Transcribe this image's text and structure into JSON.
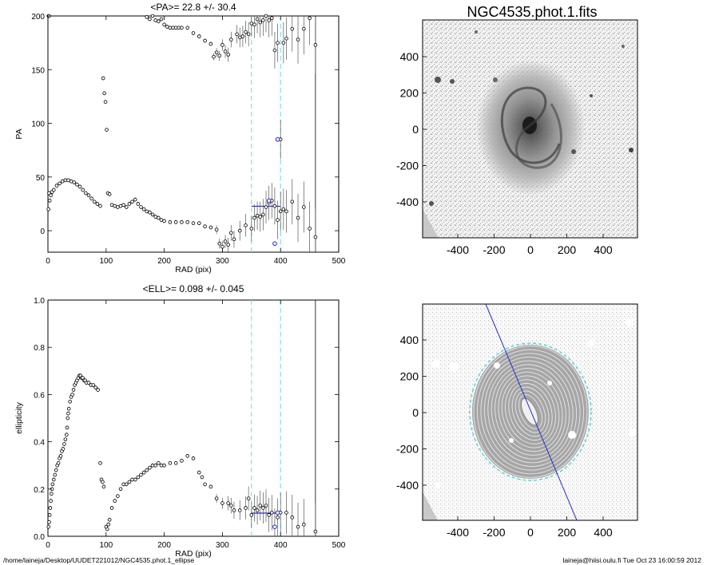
{
  "footer": {
    "path": "/home/laineja/Desktop/UUDET221012/NGC4535.phot.1_ellipse",
    "user_time": "laineja@hiisi.oulu.fi  Tue Oct 23 16:00:59 2012"
  },
  "images": {
    "title": "NGC4535.phot.1.fits",
    "ticks": [
      "-400",
      "-200",
      "0",
      "200",
      "400"
    ]
  },
  "chart_data": [
    {
      "type": "scatter",
      "title": "<PA>=  22.8 +/-  30.4",
      "xlabel": "RAD (pix)",
      "ylabel": "PA",
      "xlim": [
        0,
        500
      ],
      "ylim": [
        -20,
        200
      ],
      "xticks": [
        0,
        100,
        200,
        300,
        400,
        500
      ],
      "yticks": [
        0,
        50,
        100,
        150,
        200
      ],
      "markers": {
        "cyan_dashed_x": [
          350,
          400
        ],
        "solid_x": [
          460
        ],
        "mean_segment": {
          "x": [
            350,
            400
          ],
          "y": 22.8
        }
      },
      "series": [
        {
          "points": [
            [
              1,
              20
            ],
            [
              2,
              35
            ],
            [
              3,
              28
            ],
            [
              5,
              33
            ],
            [
              7,
              36
            ],
            [
              10,
              38
            ],
            [
              15,
              42
            ],
            [
              20,
              44
            ],
            [
              25,
              46
            ],
            [
              30,
              47
            ],
            [
              35,
              47
            ],
            [
              40,
              46
            ],
            [
              45,
              45
            ],
            [
              50,
              43
            ],
            [
              55,
              41
            ],
            [
              60,
              38
            ],
            [
              65,
              35
            ],
            [
              70,
              33
            ],
            [
              75,
              30
            ],
            [
              80,
              27
            ],
            [
              85,
              25
            ],
            [
              90,
              23
            ],
            [
              95,
              142
            ],
            [
              97,
              128
            ],
            [
              99,
              120
            ],
            [
              101,
              94
            ],
            [
              103,
              35
            ],
            [
              106,
              34
            ],
            [
              110,
              24
            ],
            [
              115,
              23
            ],
            [
              120,
              22
            ],
            [
              125,
              23
            ],
            [
              130,
              24
            ],
            [
              135,
              22
            ],
            [
              140,
              25
            ],
            [
              145,
              27
            ],
            [
              150,
              29
            ],
            [
              155,
              25
            ],
            [
              160,
              22
            ],
            [
              165,
              20
            ],
            [
              170,
              18
            ],
            [
              175,
              17
            ],
            [
              180,
              15
            ],
            [
              185,
              13
            ],
            [
              190,
              12
            ],
            [
              195,
              10
            ],
            [
              200,
              9
            ],
            [
              210,
              8
            ],
            [
              220,
              8
            ],
            [
              230,
              8
            ],
            [
              240,
              8
            ],
            [
              250,
              7
            ],
            [
              260,
              7
            ],
            [
              270,
              4
            ],
            [
              280,
              3
            ],
            [
              290,
              1
            ],
            [
              295,
              -12
            ],
            [
              300,
              -15
            ],
            [
              305,
              -10
            ],
            [
              310,
              -13
            ],
            [
              315,
              -2
            ],
            [
              320,
              -8
            ],
            [
              330,
              0
            ],
            [
              340,
              5
            ],
            [
              350,
              2
            ],
            [
              355,
              12
            ],
            [
              360,
              14
            ],
            [
              365,
              13
            ],
            [
              370,
              15
            ],
            [
              375,
              22
            ],
            [
              380,
              26
            ],
            [
              385,
              28
            ],
            [
              390,
              23
            ],
            [
              395,
              10
            ],
            [
              400,
              18
            ],
            [
              405,
              20
            ],
            [
              410,
              18
            ],
            [
              420,
              27
            ],
            [
              430,
              12
            ],
            [
              440,
              22
            ],
            [
              450,
              2
            ],
            [
              460,
              -6
            ]
          ],
          "high_band": [
            [
              1,
              200
            ],
            [
              2,
              200
            ],
            [
              170,
              199
            ],
            [
              175,
              197
            ],
            [
              180,
              200
            ],
            [
              185,
              196
            ],
            [
              190,
              195
            ],
            [
              195,
              197
            ],
            [
              200,
              192
            ],
            [
              205,
              190
            ],
            [
              210,
              189
            ],
            [
              215,
              189
            ],
            [
              220,
              189
            ],
            [
              225,
              189
            ],
            [
              230,
              189
            ],
            [
              240,
              189
            ],
            [
              250,
              184
            ],
            [
              260,
              181
            ],
            [
              270,
              177
            ],
            [
              280,
              174
            ],
            [
              285,
              162
            ],
            [
              290,
              166
            ],
            [
              295,
              163
            ],
            [
              300,
              173
            ],
            [
              305,
              167
            ],
            [
              310,
              164
            ],
            [
              315,
              178
            ],
            [
              325,
              183
            ],
            [
              330,
              180
            ],
            [
              335,
              181
            ],
            [
              340,
              185
            ],
            [
              345,
              183
            ],
            [
              350,
              193
            ],
            [
              355,
              192
            ],
            [
              360,
              197
            ],
            [
              365,
              194
            ],
            [
              370,
              196
            ],
            [
              375,
              200
            ],
            [
              380,
              196
            ],
            [
              385,
              198
            ],
            [
              390,
              168
            ],
            [
              395,
              175
            ],
            [
              400,
              85
            ],
            [
              405,
              175
            ],
            [
              410,
              179
            ],
            [
              420,
              188
            ],
            [
              430,
              178
            ],
            [
              440,
              188
            ],
            [
              450,
              198
            ],
            [
              460,
              173
            ]
          ],
          "highlighted": [
            [
              380,
              28
            ],
            [
              390,
              -12
            ],
            [
              395,
              85
            ]
          ]
        }
      ]
    },
    {
      "type": "scatter",
      "title": "<ELL>= 0.098 +/-  0.045",
      "xlabel": "RAD (pix)",
      "ylabel": "ellipticity",
      "xlim": [
        0,
        500
      ],
      "ylim": [
        0,
        1.0
      ],
      "xticks": [
        0,
        100,
        200,
        300,
        400,
        500
      ],
      "yticks": [
        0.0,
        0.2,
        0.4,
        0.6,
        0.8,
        1.0
      ],
      "markers": {
        "cyan_dashed_x": [
          350,
          400
        ],
        "solid_x": [
          460
        ],
        "mean_segment": {
          "x": [
            350,
            400
          ],
          "y": 0.098
        }
      },
      "series": [
        {
          "points": [
            [
              1,
              0.04
            ],
            [
              2,
              0.06
            ],
            [
              3,
              0.09
            ],
            [
              4,
              0.12
            ],
            [
              5,
              0.15
            ],
            [
              6,
              0.18
            ],
            [
              7,
              0.2
            ],
            [
              8,
              0.22
            ],
            [
              10,
              0.24
            ],
            [
              12,
              0.26
            ],
            [
              14,
              0.28
            ],
            [
              16,
              0.3
            ],
            [
              18,
              0.31
            ],
            [
              20,
              0.33
            ],
            [
              22,
              0.34
            ],
            [
              24,
              0.36
            ],
            [
              26,
              0.37
            ],
            [
              28,
              0.39
            ],
            [
              30,
              0.41
            ],
            [
              32,
              0.43
            ],
            [
              33,
              0.46
            ],
            [
              34,
              0.5
            ],
            [
              35,
              0.52
            ],
            [
              36,
              0.54
            ],
            [
              38,
              0.57
            ],
            [
              40,
              0.59
            ],
            [
              42,
              0.6
            ],
            [
              44,
              0.62
            ],
            [
              46,
              0.64
            ],
            [
              48,
              0.65
            ],
            [
              50,
              0.66
            ],
            [
              52,
              0.67
            ],
            [
              54,
              0.68
            ],
            [
              56,
              0.68
            ],
            [
              58,
              0.67
            ],
            [
              60,
              0.67
            ],
            [
              62,
              0.66
            ],
            [
              64,
              0.66
            ],
            [
              66,
              0.65
            ],
            [
              70,
              0.65
            ],
            [
              74,
              0.64
            ],
            [
              78,
              0.64
            ],
            [
              82,
              0.63
            ],
            [
              86,
              0.62
            ],
            [
              90,
              0.31
            ],
            [
              92,
              0.24
            ],
            [
              94,
              0.23
            ],
            [
              96,
              0.21
            ],
            [
              100,
              0.04
            ],
            [
              102,
              0.03
            ],
            [
              104,
              0.05
            ],
            [
              106,
              0.07
            ],
            [
              110,
              0.12
            ],
            [
              115,
              0.15
            ],
            [
              120,
              0.17
            ],
            [
              125,
              0.2
            ],
            [
              130,
              0.22
            ],
            [
              135,
              0.22
            ],
            [
              140,
              0.23
            ],
            [
              145,
              0.24
            ],
            [
              150,
              0.24
            ],
            [
              155,
              0.25
            ],
            [
              160,
              0.26
            ],
            [
              165,
              0.27
            ],
            [
              170,
              0.28
            ],
            [
              175,
              0.29
            ],
            [
              180,
              0.3
            ],
            [
              185,
              0.3
            ],
            [
              190,
              0.31
            ],
            [
              195,
              0.3
            ],
            [
              200,
              0.3
            ],
            [
              210,
              0.31
            ],
            [
              220,
              0.31
            ],
            [
              230,
              0.32
            ],
            [
              240,
              0.34
            ],
            [
              250,
              0.33
            ],
            [
              260,
              0.27
            ],
            [
              265,
              0.25
            ],
            [
              270,
              0.22
            ],
            [
              280,
              0.21
            ],
            [
              290,
              0.16
            ],
            [
              300,
              0.14
            ],
            [
              310,
              0.14
            ],
            [
              315,
              0.13
            ],
            [
              320,
              0.11
            ],
            [
              330,
              0.11
            ],
            [
              340,
              0.12
            ],
            [
              345,
              0.16
            ],
            [
              350,
              0.09
            ],
            [
              355,
              0.12
            ],
            [
              360,
              0.11
            ],
            [
              365,
              0.13
            ],
            [
              370,
              0.12
            ],
            [
              375,
              0.13
            ],
            [
              380,
              0.09
            ],
            [
              385,
              0.1
            ],
            [
              390,
              0.04
            ],
            [
              395,
              0.08
            ],
            [
              400,
              0.1
            ],
            [
              410,
              0.1
            ],
            [
              420,
              0.08
            ],
            [
              430,
              0.04
            ],
            [
              440,
              0.05
            ],
            [
              460,
              0.02
            ]
          ],
          "highlighted": [
            [
              390,
              0.04
            ],
            [
              395,
              0.1
            ]
          ]
        }
      ]
    }
  ]
}
